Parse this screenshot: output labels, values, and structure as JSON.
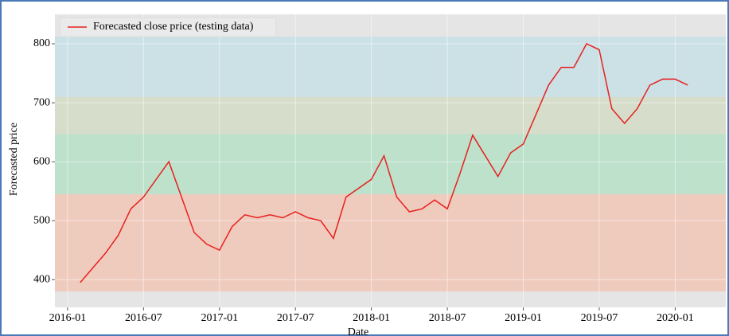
{
  "chart_data": {
    "type": "line",
    "ylabel": "Forecasted price",
    "xlabel": "Date",
    "x": [
      "2016-02",
      "2016-03",
      "2016-04",
      "2016-05",
      "2016-06",
      "2016-07",
      "2016-08",
      "2016-09",
      "2016-10",
      "2016-11",
      "2016-12",
      "2017-01",
      "2017-02",
      "2017-03",
      "2017-04",
      "2017-05",
      "2017-06",
      "2017-07",
      "2017-08",
      "2017-09",
      "2017-10",
      "2017-11",
      "2017-12",
      "2018-01",
      "2018-02",
      "2018-03",
      "2018-04",
      "2018-05",
      "2018-06",
      "2018-07",
      "2018-08",
      "2018-09",
      "2018-10",
      "2018-11",
      "2018-12",
      "2019-01",
      "2019-02",
      "2019-03",
      "2019-04",
      "2019-05",
      "2019-06",
      "2019-07",
      "2019-08",
      "2019-09",
      "2019-10",
      "2019-11",
      "2019-12",
      "2020-01",
      "2020-02"
    ],
    "series": [
      {
        "name": "Forecasted close price (testing data)",
        "color": "#e8201f",
        "values": [
          395,
          420,
          445,
          475,
          520,
          540,
          570,
          600,
          540,
          480,
          460,
          450,
          490,
          510,
          505,
          510,
          505,
          515,
          505,
          500,
          470,
          540,
          555,
          570,
          610,
          540,
          515,
          520,
          535,
          520,
          580,
          645,
          610,
          575,
          615,
          630,
          680,
          730,
          760,
          760,
          800,
          790,
          690,
          665,
          690,
          730,
          740,
          740,
          730
        ]
      }
    ],
    "bands": [
      {
        "from": 380,
        "to": 545,
        "color": "#f0c8b8"
      },
      {
        "from": 545,
        "to": 647,
        "color": "#b8e0c8"
      },
      {
        "from": 647,
        "to": 710,
        "color": "#d4dcc8"
      },
      {
        "from": 710,
        "to": 812,
        "color": "#c8e0e6"
      }
    ],
    "xlim": [
      "2015-12",
      "2020-05"
    ],
    "xticks": [
      "2016-01",
      "2016-07",
      "2017-01",
      "2017-07",
      "2018-01",
      "2018-07",
      "2019-01",
      "2019-07",
      "2020-01"
    ],
    "ylim": [
      353,
      850
    ],
    "yticks": [
      400,
      500,
      600,
      700,
      800
    ],
    "grid": true,
    "legend": "upper left"
  }
}
